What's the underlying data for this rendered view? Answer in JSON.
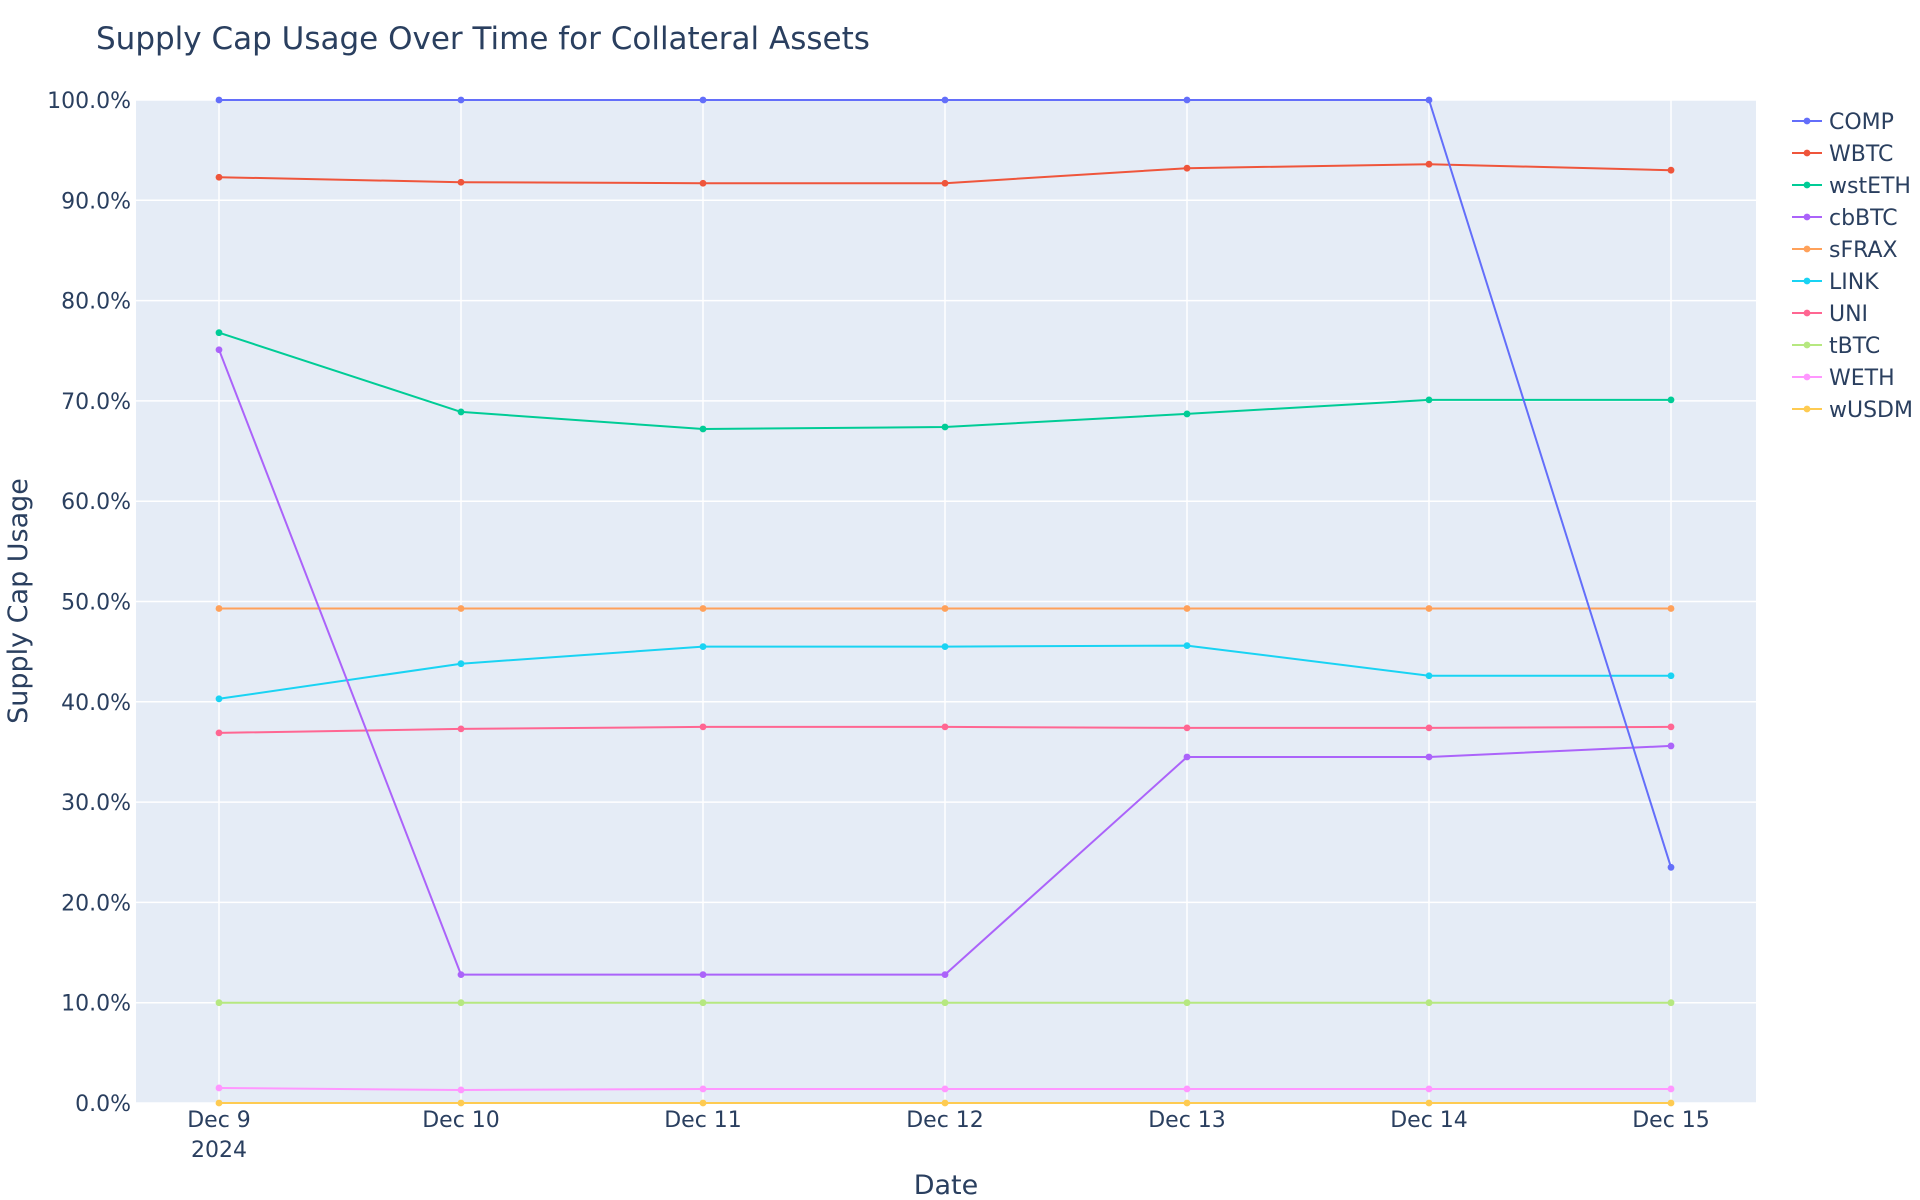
{
  "chart_data": {
    "type": "line",
    "title": "Supply Cap Usage Over Time for Collateral Assets",
    "xlabel": "Date",
    "ylabel": "Supply Cap Usage",
    "x": [
      "Dec 9",
      "Dec 10",
      "Dec 11",
      "Dec 12",
      "Dec 13",
      "Dec 14",
      "Dec 15"
    ],
    "x_year_label": "2024",
    "ylim": [
      0,
      100
    ],
    "yticks": [
      "0.0%",
      "10.0%",
      "20.0%",
      "30.0%",
      "40.0%",
      "50.0%",
      "60.0%",
      "70.0%",
      "80.0%",
      "90.0%",
      "100.0%"
    ],
    "grid": true,
    "legend_position": "top-right",
    "series": [
      {
        "name": "COMP",
        "color": "#636efa",
        "values": [
          100.0,
          100.0,
          100.0,
          100.0,
          100.0,
          100.0,
          23.5
        ]
      },
      {
        "name": "WBTC",
        "color": "#EF553B",
        "values": [
          92.3,
          91.8,
          91.7,
          91.7,
          93.2,
          93.6,
          93.0
        ]
      },
      {
        "name": "wstETH",
        "color": "#00cc96",
        "values": [
          76.8,
          68.9,
          67.2,
          67.4,
          68.7,
          70.1,
          70.1
        ]
      },
      {
        "name": "cbBTC",
        "color": "#ab63fa",
        "values": [
          75.1,
          12.8,
          12.8,
          12.8,
          34.5,
          34.5,
          35.6
        ]
      },
      {
        "name": "sFRAX",
        "color": "#FFA15A",
        "values": [
          49.3,
          49.3,
          49.3,
          49.3,
          49.3,
          49.3,
          49.3
        ]
      },
      {
        "name": "LINK",
        "color": "#19d3f3",
        "values": [
          40.3,
          43.8,
          45.5,
          45.5,
          45.6,
          42.6,
          42.6
        ]
      },
      {
        "name": "UNI",
        "color": "#FF6692",
        "values": [
          36.9,
          37.3,
          37.5,
          37.5,
          37.4,
          37.4,
          37.5
        ]
      },
      {
        "name": "tBTC",
        "color": "#B6E880",
        "values": [
          10.0,
          10.0,
          10.0,
          10.0,
          10.0,
          10.0,
          10.0
        ]
      },
      {
        "name": "WETH",
        "color": "#FF97FF",
        "values": [
          1.5,
          1.3,
          1.4,
          1.4,
          1.4,
          1.4,
          1.4
        ]
      },
      {
        "name": "wUSDM",
        "color": "#FECB52",
        "values": [
          0.0,
          0.0,
          0.0,
          0.0,
          0.0,
          0.0,
          0.0
        ]
      }
    ]
  }
}
